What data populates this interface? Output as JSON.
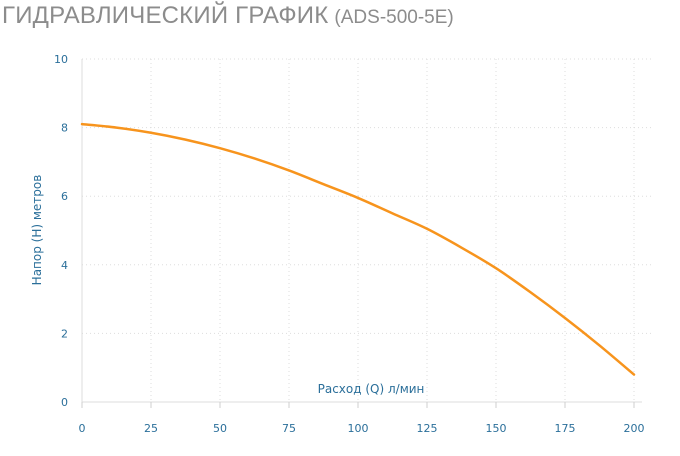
{
  "header": {
    "title": "ГИДРАВЛИЧЕСКИЙ ГРАФИК",
    "model": "(ADS-500-5E)"
  },
  "chart_data": {
    "type": "line",
    "title": "ГИДРАВЛИЧЕСКИЙ ГРАФИК (ADS-500-5E)",
    "xlabel": "Расход (Q) л/мин",
    "ylabel": "Напор (H) метров",
    "xlim": [
      0,
      200
    ],
    "ylim": [
      0,
      10
    ],
    "xticks": [
      0,
      25,
      50,
      75,
      100,
      125,
      150,
      175,
      200
    ],
    "yticks": [
      0,
      2,
      4,
      6,
      8,
      10
    ],
    "grid": true,
    "legend": "none",
    "series": [
      {
        "color": "#f7941d",
        "x": [
          0,
          12.5,
          25,
          37.5,
          50,
          62.5,
          75,
          87.5,
          100,
          112.5,
          125,
          137.5,
          150,
          162.5,
          175,
          187.5,
          200
        ],
        "y": [
          8.1,
          8.0,
          7.85,
          7.65,
          7.4,
          7.1,
          6.75,
          6.35,
          5.95,
          5.5,
          5.05,
          4.5,
          3.9,
          3.2,
          2.45,
          1.65,
          0.8
        ]
      }
    ]
  },
  "colors": {
    "accent": "#f7941d",
    "tick_text": "#2b6f9a",
    "grid": "#dddddd",
    "title": "#8c8c8c"
  }
}
